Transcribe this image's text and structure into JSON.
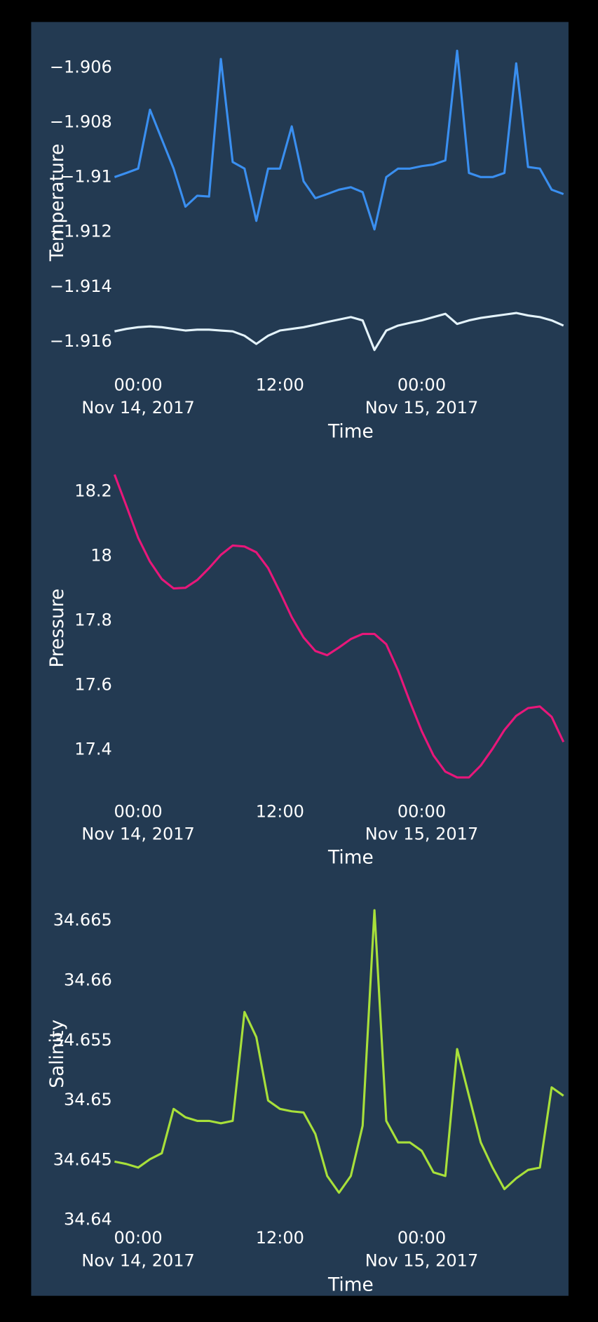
{
  "chart_data": [
    {
      "type": "line",
      "x_label": "Time",
      "y_label": "Temperature",
      "x": [
        "2017-11-13 22:00",
        "2017-11-13 23:00",
        "2017-11-14 00:00",
        "2017-11-14 01:00",
        "2017-11-14 02:00",
        "2017-11-14 03:00",
        "2017-11-14 04:00",
        "2017-11-14 05:00",
        "2017-11-14 06:00",
        "2017-11-14 07:00",
        "2017-11-14 08:00",
        "2017-11-14 09:00",
        "2017-11-14 10:00",
        "2017-11-14 11:00",
        "2017-11-14 12:00",
        "2017-11-14 13:00",
        "2017-11-14 14:00",
        "2017-11-14 15:00",
        "2017-11-14 16:00",
        "2017-11-14 17:00",
        "2017-11-14 18:00",
        "2017-11-14 19:00",
        "2017-11-14 20:00",
        "2017-11-14 21:00",
        "2017-11-14 22:00",
        "2017-11-14 23:00",
        "2017-11-15 00:00",
        "2017-11-15 01:00",
        "2017-11-15 02:00",
        "2017-11-15 03:00",
        "2017-11-15 04:00",
        "2017-11-15 05:00",
        "2017-11-15 06:00",
        "2017-11-15 07:00",
        "2017-11-15 08:00",
        "2017-11-15 09:00",
        "2017-11-15 10:00",
        "2017-11-15 11:00",
        "2017-11-15 12:00"
      ],
      "series": [
        {
          "color": "#3a8ff0",
          "values": [
            -1.91003,
            -1.90988,
            -1.90972,
            -1.90757,
            -1.90865,
            -1.90972,
            -1.91111,
            -1.91071,
            -1.91074,
            -1.90572,
            -1.90948,
            -1.90972,
            -1.91163,
            -1.90972,
            -1.90972,
            -1.90818,
            -1.91018,
            -1.9108,
            -1.91065,
            -1.91049,
            -1.9104,
            -1.91058,
            -1.91194,
            -1.91003,
            -1.90972,
            -1.90972,
            -1.90963,
            -1.90957,
            -1.90942,
            -1.90542,
            -1.90988,
            -1.91003,
            -1.91003,
            -1.90988,
            -1.90588,
            -1.90966,
            -1.90972,
            -1.91049,
            -1.91065
          ]
        },
        {
          "color": "#e4f3fb",
          "values": [
            -1.91566,
            -1.91557,
            -1.91551,
            -1.91548,
            -1.91551,
            -1.91557,
            -1.91563,
            -1.9156,
            -1.9156,
            -1.91563,
            -1.91566,
            -1.91582,
            -1.91612,
            -1.91582,
            -1.91563,
            -1.91557,
            -1.91551,
            -1.91542,
            -1.91532,
            -1.91523,
            -1.91514,
            -1.91526,
            -1.91634,
            -1.91563,
            -1.91545,
            -1.91535,
            -1.91526,
            -1.91514,
            -1.91502,
            -1.91539,
            -1.91526,
            -1.91517,
            -1.91511,
            -1.91505,
            -1.91499,
            -1.91508,
            -1.91514,
            -1.91526,
            -1.91545
          ]
        }
      ],
      "xlim": [
        "2017-11-13 22:00",
        "2017-11-15 12:00"
      ],
      "xticks": [
        {
          "value": "2017-11-14 00:00",
          "label": "00:00\nNov 14, 2017"
        },
        {
          "value": "2017-11-14 12:00",
          "label": "12:00"
        },
        {
          "value": "2017-11-15 00:00",
          "label": "00:00\nNov 15, 2017"
        }
      ],
      "ylim": [
        -1.9166,
        -1.9052
      ],
      "yticks": [
        {
          "value": -1.906,
          "label": "−1.906"
        },
        {
          "value": -1.908,
          "label": "−1.908"
        },
        {
          "value": -1.91,
          "label": "−1.91"
        },
        {
          "value": -1.912,
          "label": "−1.912"
        },
        {
          "value": -1.914,
          "label": "−1.914"
        },
        {
          "value": -1.916,
          "label": "−1.916"
        }
      ],
      "grid": false
    },
    {
      "type": "line",
      "x_label": "Time",
      "y_label": "Pressure",
      "x": [
        "2017-11-13 22:00",
        "2017-11-13 23:00",
        "2017-11-14 00:00",
        "2017-11-14 01:00",
        "2017-11-14 02:00",
        "2017-11-14 03:00",
        "2017-11-14 04:00",
        "2017-11-14 05:00",
        "2017-11-14 06:00",
        "2017-11-14 07:00",
        "2017-11-14 08:00",
        "2017-11-14 09:00",
        "2017-11-14 10:00",
        "2017-11-14 11:00",
        "2017-11-14 12:00",
        "2017-11-14 13:00",
        "2017-11-14 14:00",
        "2017-11-14 15:00",
        "2017-11-14 16:00",
        "2017-11-14 17:00",
        "2017-11-14 18:00",
        "2017-11-14 19:00",
        "2017-11-14 20:00",
        "2017-11-14 21:00",
        "2017-11-14 22:00",
        "2017-11-14 23:00",
        "2017-11-15 00:00",
        "2017-11-15 01:00",
        "2017-11-15 02:00",
        "2017-11-15 03:00",
        "2017-11-15 04:00",
        "2017-11-15 05:00",
        "2017-11-15 06:00",
        "2017-11-15 07:00",
        "2017-11-15 08:00",
        "2017-11-15 09:00",
        "2017-11-15 10:00",
        "2017-11-15 11:00",
        "2017-11-15 12:00"
      ],
      "series": [
        {
          "color": "#e8177a",
          "values": [
            18.25,
            18.153,
            18.054,
            17.98,
            17.926,
            17.897,
            17.899,
            17.923,
            17.96,
            18.001,
            18.03,
            18.027,
            18.009,
            17.96,
            17.886,
            17.808,
            17.745,
            17.703,
            17.69,
            17.714,
            17.74,
            17.756,
            17.756,
            17.724,
            17.643,
            17.546,
            17.455,
            17.379,
            17.329,
            17.311,
            17.311,
            17.348,
            17.4,
            17.458,
            17.502,
            17.526,
            17.531,
            17.499,
            17.421
          ]
        }
      ],
      "xlim": [
        "2017-11-13 22:00",
        "2017-11-15 12:00"
      ],
      "xticks": [
        {
          "value": "2017-11-14 00:00",
          "label": "00:00\nNov 14, 2017"
        },
        {
          "value": "2017-11-14 12:00",
          "label": "12:00"
        },
        {
          "value": "2017-11-15 00:00",
          "label": "00:00\nNov 15, 2017"
        }
      ],
      "ylim": [
        17.28,
        18.26
      ],
      "yticks": [
        18.2,
        18,
        17.8,
        17.6,
        17.4
      ],
      "grid": false
    },
    {
      "type": "line",
      "x_label": "Time",
      "y_label": "Salinity",
      "x": [
        "2017-11-13 22:00",
        "2017-11-13 23:00",
        "2017-11-14 00:00",
        "2017-11-14 01:00",
        "2017-11-14 02:00",
        "2017-11-14 03:00",
        "2017-11-14 04:00",
        "2017-11-14 05:00",
        "2017-11-14 06:00",
        "2017-11-14 07:00",
        "2017-11-14 08:00",
        "2017-11-14 09:00",
        "2017-11-14 10:00",
        "2017-11-14 11:00",
        "2017-11-14 12:00",
        "2017-11-14 13:00",
        "2017-11-14 14:00",
        "2017-11-14 15:00",
        "2017-11-14 16:00",
        "2017-11-14 17:00",
        "2017-11-14 18:00",
        "2017-11-14 19:00",
        "2017-11-14 20:00",
        "2017-11-14 21:00",
        "2017-11-14 22:00",
        "2017-11-14 23:00",
        "2017-11-15 00:00",
        "2017-11-15 01:00",
        "2017-11-15 02:00",
        "2017-11-15 03:00",
        "2017-11-15 04:00",
        "2017-11-15 05:00",
        "2017-11-15 06:00",
        "2017-11-15 07:00",
        "2017-11-15 08:00",
        "2017-11-15 09:00",
        "2017-11-15 10:00",
        "2017-11-15 11:00",
        "2017-11-15 12:00"
      ],
      "series": [
        {
          "color": "#a8e03a",
          "values": [
            34.6448,
            34.6446,
            34.6443,
            34.645,
            34.6455,
            34.6492,
            34.6485,
            34.6482,
            34.6482,
            34.648,
            34.6482,
            34.6573,
            34.6552,
            34.6499,
            34.6492,
            34.649,
            34.6489,
            34.6471,
            34.6436,
            34.6422,
            34.6436,
            34.6478,
            34.6658,
            34.6482,
            34.6464,
            34.6464,
            34.6457,
            34.6439,
            34.6436,
            34.6542,
            34.6503,
            34.6464,
            34.6443,
            34.6425,
            34.6434,
            34.6441,
            34.6443,
            34.651,
            34.6503
          ]
        }
      ],
      "xlim": [
        "2017-11-13 22:00",
        "2017-11-15 12:00"
      ],
      "xticks": [
        {
          "value": "2017-11-14 00:00",
          "label": "00:00\nNov 14, 2017"
        },
        {
          "value": "2017-11-14 12:00",
          "label": "12:00"
        },
        {
          "value": "2017-11-15 00:00",
          "label": "00:00\nNov 15, 2017"
        }
      ],
      "ylim": [
        34.6398,
        34.6668
      ],
      "yticks": [
        34.665,
        34.66,
        34.655,
        34.65,
        34.645,
        34.64
      ],
      "grid": false
    }
  ]
}
